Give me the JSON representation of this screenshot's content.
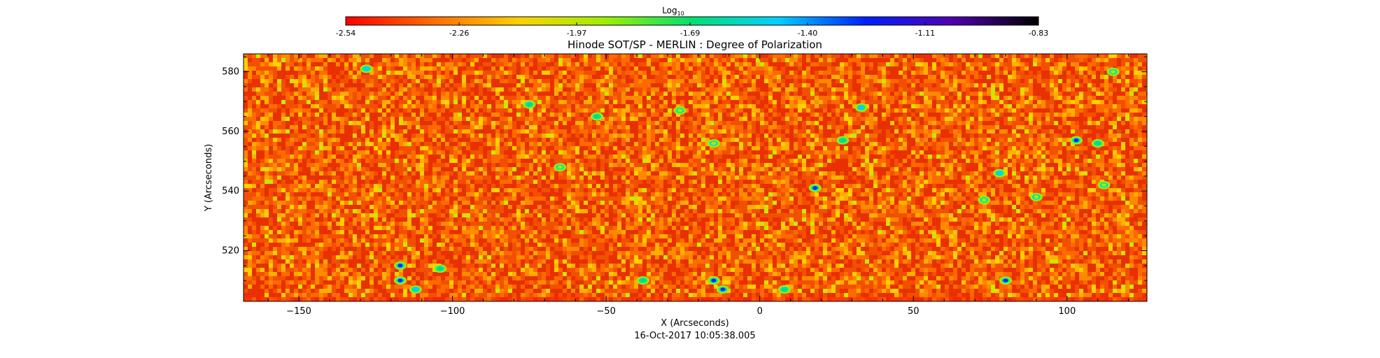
{
  "chart_data": {
    "type": "heatmap",
    "title": "Hinode SOT/SP - MERLIN : Degree of Polarization",
    "xlabel": "X (Arcseconds)",
    "ylabel": "Y (Arcseconds)",
    "timestamp": "16-Oct-2017 10:05:38.005",
    "xlim": [
      -168,
      126
    ],
    "ylim": [
      503,
      586
    ],
    "x_ticks": [
      -150,
      -100,
      -50,
      0,
      50,
      100
    ],
    "y_ticks": [
      520,
      540,
      560,
      580
    ],
    "grid": false,
    "colorbar": {
      "label_base": "Log",
      "label_sub": "10",
      "placement": "top",
      "scale": "log10",
      "range": [
        -2.54,
        -0.83
      ],
      "tick_values": [
        -2.54,
        -2.26,
        -1.97,
        -1.69,
        -1.4,
        -1.11,
        -0.83
      ],
      "tick_labels": [
        "-2.54",
        "-2.26",
        "-1.97",
        "-1.69",
        "-1.40",
        "-1.11",
        "-0.83"
      ],
      "colors": [
        "#ff0000",
        "#ff6a00",
        "#ffd000",
        "#9cf000",
        "#00e070",
        "#00d0ff",
        "#0020ff",
        "#5000b0",
        "#000000"
      ]
    },
    "features": [
      {
        "x": -128,
        "y": 581,
        "v": -1.4
      },
      {
        "x": -117,
        "y": 515,
        "v": -1.3
      },
      {
        "x": -117,
        "y": 510,
        "v": -1.3
      },
      {
        "x": -112,
        "y": 507,
        "v": -1.5
      },
      {
        "x": -104,
        "y": 514,
        "v": -1.7
      },
      {
        "x": -75,
        "y": 569,
        "v": -1.7
      },
      {
        "x": -65,
        "y": 548,
        "v": -1.8
      },
      {
        "x": -53,
        "y": 565,
        "v": -1.75
      },
      {
        "x": -38,
        "y": 510,
        "v": -1.7
      },
      {
        "x": -15,
        "y": 510,
        "v": -1.2
      },
      {
        "x": -12,
        "y": 507,
        "v": -1.3
      },
      {
        "x": -26,
        "y": 567,
        "v": -1.8
      },
      {
        "x": -15,
        "y": 556,
        "v": -1.8
      },
      {
        "x": 18,
        "y": 541,
        "v": -1.3
      },
      {
        "x": 8,
        "y": 507,
        "v": -1.7
      },
      {
        "x": 27,
        "y": 557,
        "v": -1.6
      },
      {
        "x": 33,
        "y": 568,
        "v": -1.5
      },
      {
        "x": 80,
        "y": 510,
        "v": -1.2
      },
      {
        "x": 78,
        "y": 546,
        "v": -1.5
      },
      {
        "x": 90,
        "y": 538,
        "v": -1.8
      },
      {
        "x": 103,
        "y": 557,
        "v": -1.3
      },
      {
        "x": 110,
        "y": 556,
        "v": -1.6
      },
      {
        "x": 112,
        "y": 542,
        "v": -1.85
      },
      {
        "x": 73,
        "y": 537,
        "v": -1.85
      },
      {
        "x": 115,
        "y": 580,
        "v": -1.85
      }
    ]
  }
}
